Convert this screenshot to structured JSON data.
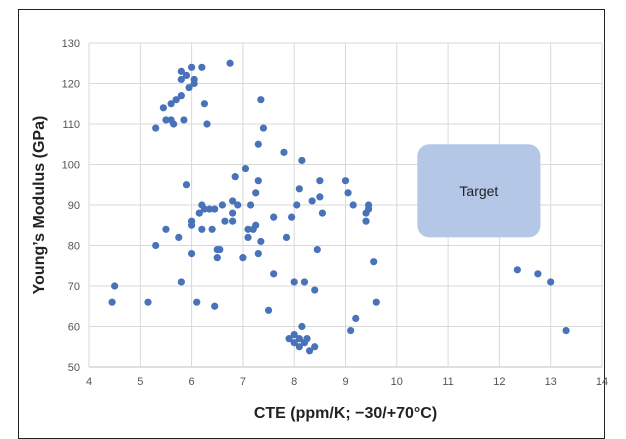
{
  "chart_data": {
    "type": "scatter",
    "title": "",
    "xlabel": "CTE (ppm/K; −30/+70°C)",
    "ylabel": "Young’s Modulus (GPa)",
    "xlim": [
      4,
      14
    ],
    "ylim": [
      50,
      130
    ],
    "x_ticks": [
      "4",
      "5",
      "6",
      "7",
      "8",
      "9",
      "10",
      "11",
      "12",
      "13",
      "14"
    ],
    "y_ticks": [
      "50",
      "60",
      "70",
      "80",
      "90",
      "100",
      "110",
      "120",
      "130"
    ],
    "grid": "horizontal",
    "colors": {
      "points": "#4a72b8",
      "target_fill": "#b4c7e7"
    },
    "annotations": [
      {
        "label": "Target",
        "x_range": [
          10.4,
          12.8
        ],
        "y_range": [
          82,
          105
        ]
      }
    ],
    "series": [
      {
        "points": [
          [
            4.45,
            66
          ],
          [
            4.5,
            70
          ],
          [
            5.15,
            66
          ],
          [
            5.3,
            80
          ],
          [
            5.3,
            109
          ],
          [
            5.45,
            114
          ],
          [
            5.5,
            111
          ],
          [
            5.5,
            84
          ],
          [
            5.6,
            115
          ],
          [
            5.6,
            111
          ],
          [
            5.65,
            110
          ],
          [
            5.7,
            116
          ],
          [
            5.75,
            82
          ],
          [
            5.8,
            71
          ],
          [
            5.8,
            117
          ],
          [
            5.8,
            121
          ],
          [
            5.8,
            123
          ],
          [
            5.85,
            111
          ],
          [
            5.9,
            95
          ],
          [
            5.9,
            122
          ],
          [
            5.95,
            119
          ],
          [
            6.0,
            124
          ],
          [
            6.0,
            85
          ],
          [
            6.0,
            86
          ],
          [
            6.0,
            78
          ],
          [
            6.05,
            121
          ],
          [
            6.05,
            120
          ],
          [
            6.1,
            66
          ],
          [
            6.15,
            88
          ],
          [
            6.2,
            124
          ],
          [
            6.2,
            90
          ],
          [
            6.2,
            84
          ],
          [
            6.25,
            89
          ],
          [
            6.25,
            115
          ],
          [
            6.3,
            110
          ],
          [
            6.35,
            89
          ],
          [
            6.4,
            84
          ],
          [
            6.45,
            89
          ],
          [
            6.45,
            65
          ],
          [
            6.5,
            79
          ],
          [
            6.5,
            77
          ],
          [
            6.55,
            79
          ],
          [
            6.6,
            90
          ],
          [
            6.65,
            86
          ],
          [
            6.75,
            125
          ],
          [
            6.8,
            86
          ],
          [
            6.8,
            88
          ],
          [
            6.8,
            91
          ],
          [
            6.85,
            97
          ],
          [
            6.9,
            90
          ],
          [
            7.0,
            77
          ],
          [
            7.05,
            99
          ],
          [
            7.1,
            82
          ],
          [
            7.1,
            84
          ],
          [
            7.15,
            90
          ],
          [
            7.2,
            84
          ],
          [
            7.25,
            85
          ],
          [
            7.25,
            93
          ],
          [
            7.3,
            78
          ],
          [
            7.3,
            105
          ],
          [
            7.3,
            96
          ],
          [
            7.35,
            81
          ],
          [
            7.35,
            116
          ],
          [
            7.4,
            109
          ],
          [
            7.5,
            64
          ],
          [
            7.6,
            87
          ],
          [
            7.6,
            73
          ],
          [
            7.8,
            103
          ],
          [
            7.85,
            82
          ],
          [
            7.9,
            57
          ],
          [
            7.95,
            87
          ],
          [
            8.0,
            58
          ],
          [
            8.0,
            56
          ],
          [
            8.0,
            71
          ],
          [
            8.05,
            90
          ],
          [
            8.1,
            94
          ],
          [
            8.1,
            57
          ],
          [
            8.1,
            55
          ],
          [
            8.15,
            60
          ],
          [
            8.15,
            101
          ],
          [
            8.2,
            56
          ],
          [
            8.2,
            71
          ],
          [
            8.25,
            57
          ],
          [
            8.3,
            54
          ],
          [
            8.35,
            91
          ],
          [
            8.4,
            69
          ],
          [
            8.4,
            55
          ],
          [
            8.45,
            79
          ],
          [
            8.5,
            96
          ],
          [
            8.5,
            92
          ],
          [
            8.55,
            88
          ],
          [
            9.0,
            96
          ],
          [
            9.05,
            93
          ],
          [
            9.1,
            59
          ],
          [
            9.15,
            90
          ],
          [
            9.2,
            62
          ],
          [
            9.4,
            88
          ],
          [
            9.4,
            86
          ],
          [
            9.45,
            89
          ],
          [
            9.45,
            90
          ],
          [
            9.55,
            76
          ],
          [
            9.6,
            66
          ],
          [
            12.35,
            74
          ],
          [
            12.75,
            73
          ],
          [
            13.0,
            71
          ],
          [
            13.3,
            59
          ]
        ]
      }
    ]
  }
}
